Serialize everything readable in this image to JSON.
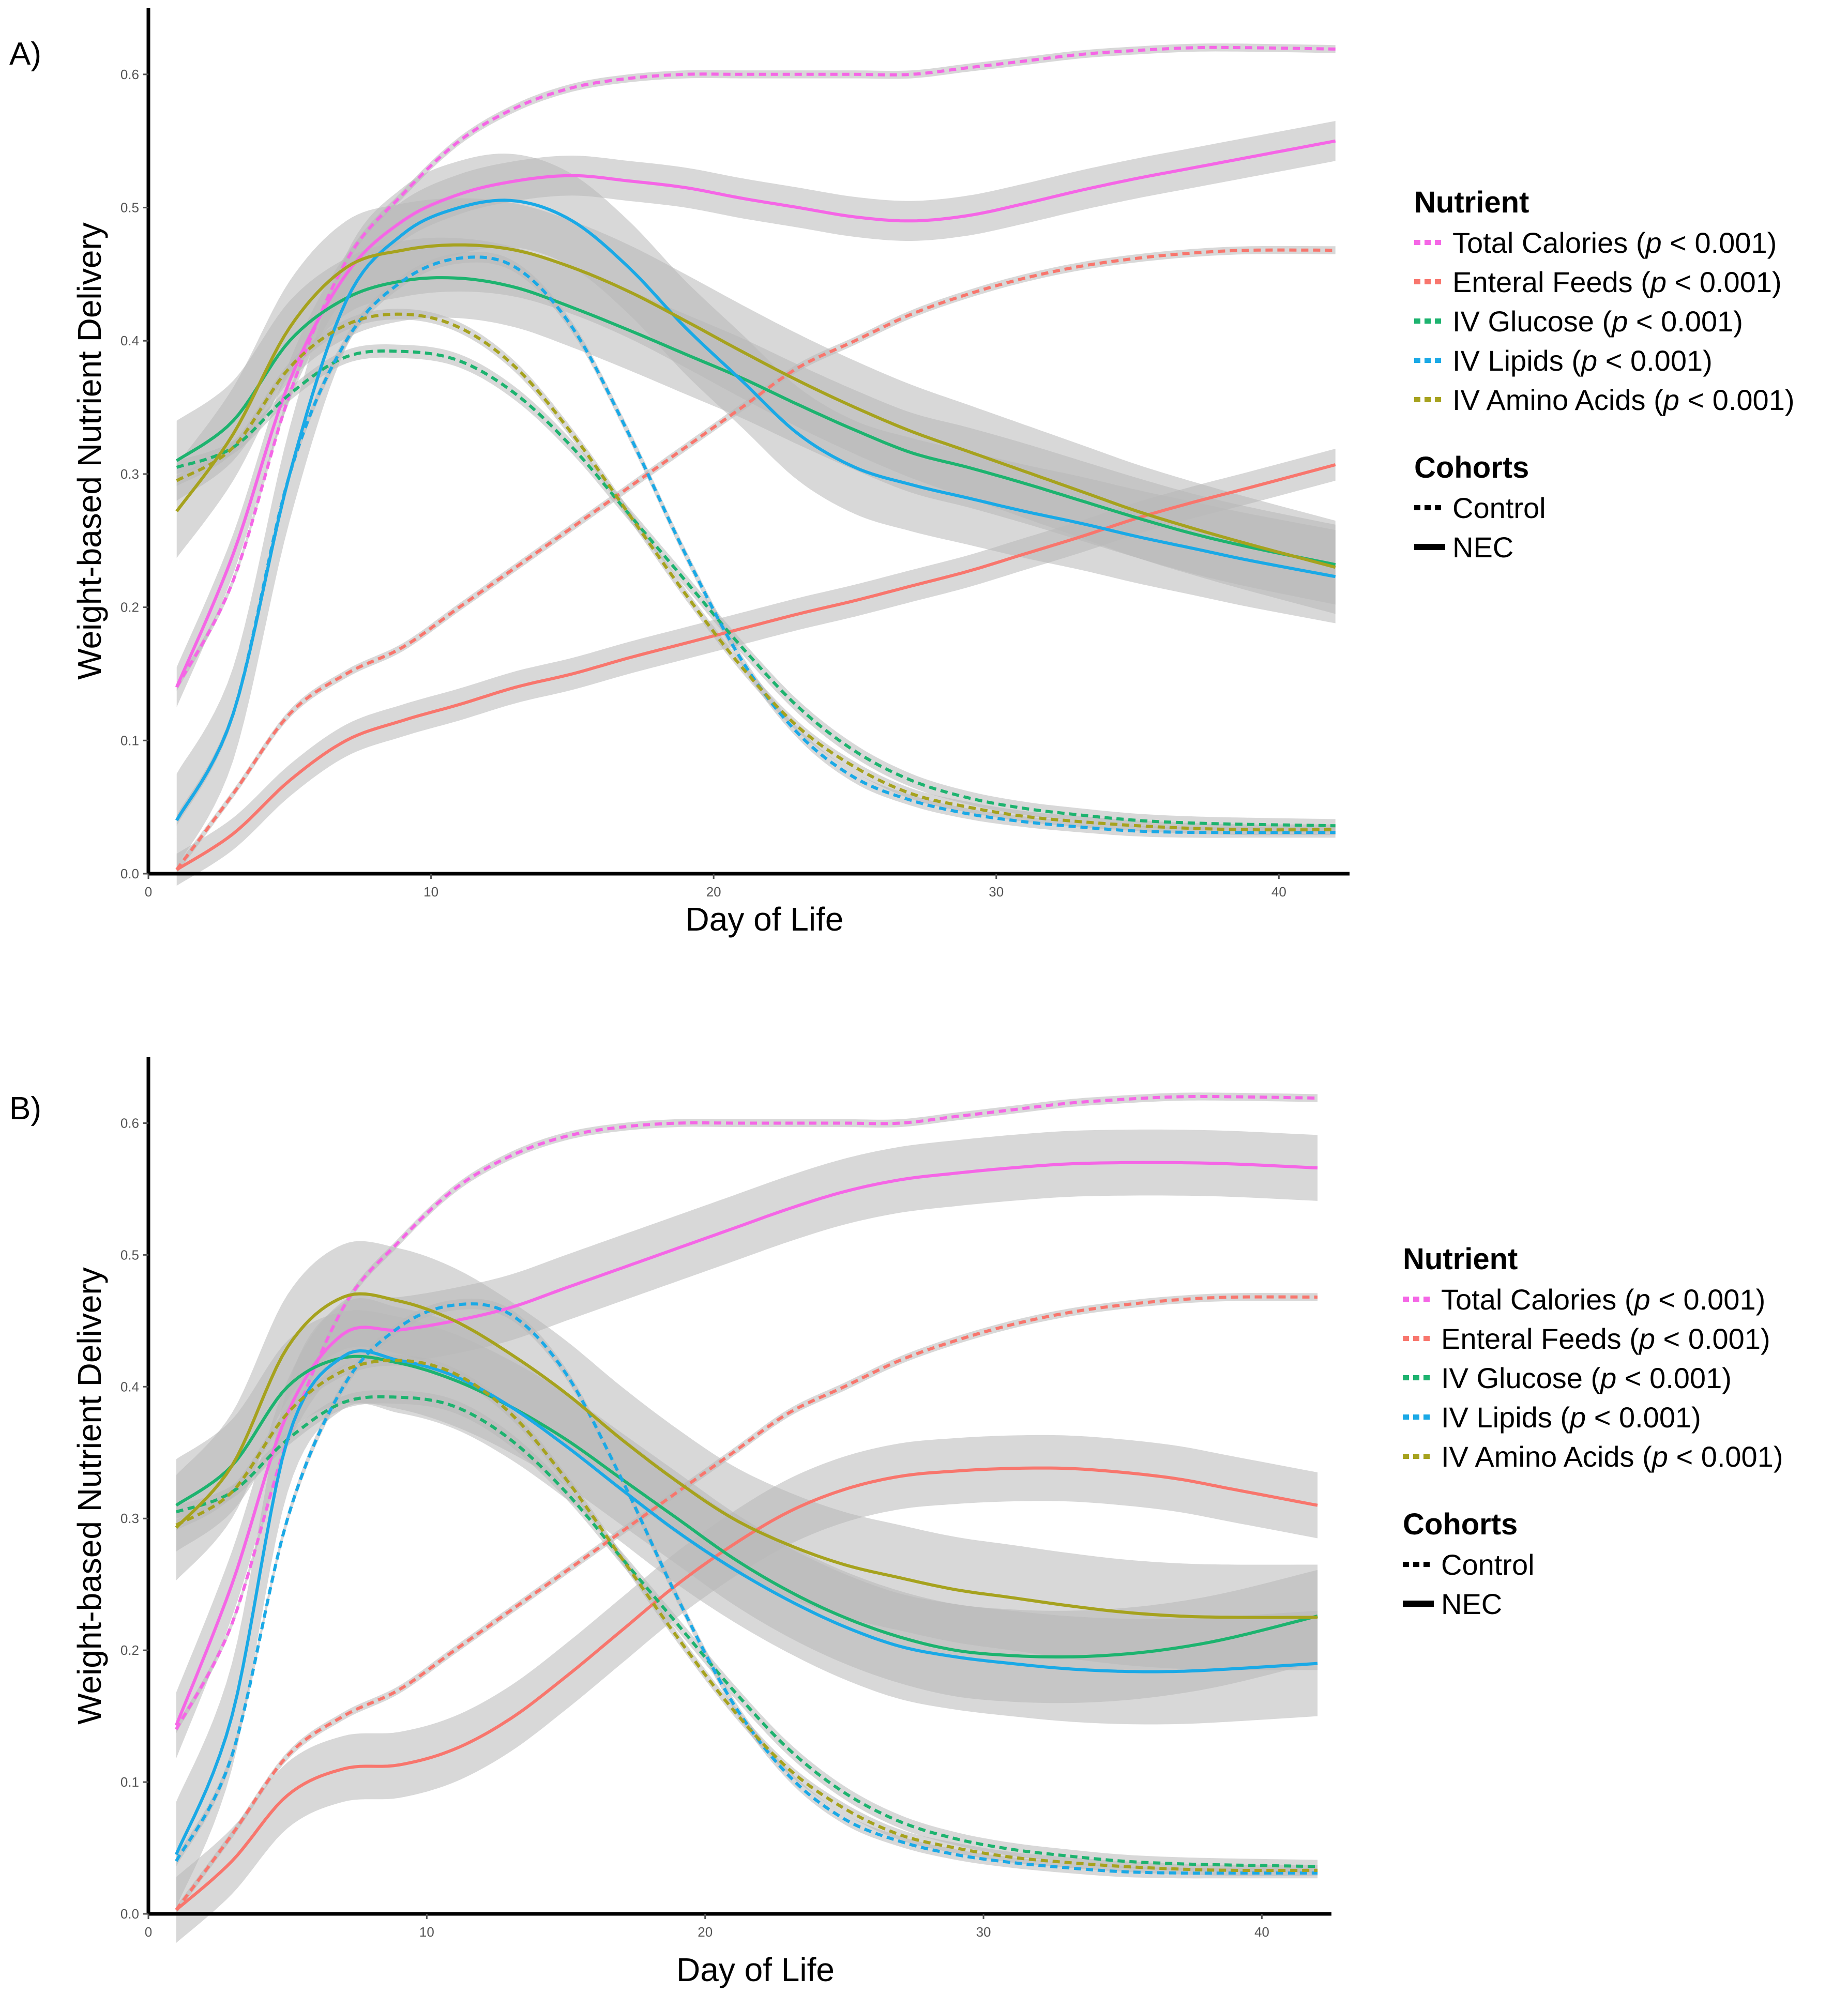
{
  "colors": {
    "total_calories": "#F566E6",
    "enteral_feeds": "#F8766D",
    "iv_glucose": "#1DB36F",
    "iv_lipids": "#1AA9E6",
    "iv_amino_acids": "#A6A21E",
    "band": "#B8B8B8",
    "axis": "#000000",
    "tick_label": "#555555"
  },
  "legend": {
    "nutrient_title": "Nutrient",
    "cohorts_title": "Cohorts",
    "entries": [
      {
        "key": "total_calories",
        "label": "Total Calories (",
        "p": "p",
        "suffix": " < 0.001)"
      },
      {
        "key": "enteral_feeds",
        "label": "Enteral Feeds (",
        "p": "p",
        "suffix": " < 0.001)"
      },
      {
        "key": "iv_glucose",
        "label": "IV Glucose (",
        "p": "p",
        "suffix": " < 0.001)"
      },
      {
        "key": "iv_lipids",
        "label": "IV Lipids (",
        "p": "p",
        "suffix": " < 0.001)"
      },
      {
        "key": "iv_amino_acids",
        "label": "IV Amino Acids (",
        "p": "p",
        "suffix": " < 0.001)"
      }
    ],
    "cohorts": [
      {
        "style": "dashed",
        "label": "Control"
      },
      {
        "style": "solid",
        "label": "NEC"
      }
    ]
  },
  "chart_data": [
    {
      "panel": "A)",
      "type": "line",
      "xlabel": "Day of Life",
      "ylabel": "Weight-based Nutrient Delivery",
      "xlim": [
        0,
        42.5
      ],
      "ylim": [
        0,
        0.65
      ],
      "xticks": [
        0,
        10,
        20,
        30,
        40
      ],
      "yticks": [
        0.0,
        0.1,
        0.2,
        0.3,
        0.4,
        0.5,
        0.6
      ],
      "series": [
        {
          "nutrient": "total_calories",
          "cohort": "Control",
          "band": 0.003,
          "x": [
            1,
            3,
            5,
            7,
            9,
            11,
            13,
            15,
            17,
            19,
            21,
            23,
            25,
            27,
            29,
            31,
            33,
            35,
            37,
            39,
            42
          ],
          "y": [
            0.14,
            0.22,
            0.36,
            0.46,
            0.51,
            0.55,
            0.575,
            0.59,
            0.597,
            0.6,
            0.6,
            0.6,
            0.6,
            0.6,
            0.605,
            0.61,
            0.615,
            0.618,
            0.62,
            0.62,
            0.619
          ]
        },
        {
          "nutrient": "total_calories",
          "cohort": "NEC",
          "band": 0.015,
          "x": [
            1,
            3,
            5,
            7,
            9,
            11,
            13,
            15,
            17,
            19,
            21,
            23,
            25,
            27,
            29,
            31,
            33,
            35,
            37,
            39,
            42
          ],
          "y": [
            0.14,
            0.24,
            0.37,
            0.45,
            0.49,
            0.51,
            0.52,
            0.524,
            0.52,
            0.515,
            0.507,
            0.5,
            0.493,
            0.49,
            0.494,
            0.503,
            0.513,
            0.522,
            0.53,
            0.538,
            0.55
          ]
        },
        {
          "nutrient": "enteral_feeds",
          "cohort": "Control",
          "band": 0.003,
          "x": [
            1,
            3,
            5,
            7,
            9,
            11,
            13,
            15,
            17,
            19,
            21,
            23,
            25,
            27,
            29,
            31,
            33,
            35,
            37,
            39,
            42
          ],
          "y": [
            0.003,
            0.06,
            0.12,
            0.15,
            0.17,
            0.2,
            0.23,
            0.26,
            0.29,
            0.32,
            0.35,
            0.38,
            0.4,
            0.42,
            0.435,
            0.447,
            0.456,
            0.462,
            0.466,
            0.468,
            0.468
          ]
        },
        {
          "nutrient": "enteral_feeds",
          "cohort": "NEC",
          "band": 0.012,
          "x": [
            1,
            3,
            5,
            7,
            9,
            11,
            13,
            15,
            17,
            19,
            21,
            23,
            25,
            27,
            29,
            31,
            33,
            35,
            37,
            39,
            42
          ],
          "y": [
            0.003,
            0.03,
            0.07,
            0.1,
            0.115,
            0.127,
            0.14,
            0.15,
            0.162,
            0.173,
            0.184,
            0.195,
            0.205,
            0.216,
            0.227,
            0.24,
            0.253,
            0.267,
            0.279,
            0.29,
            0.307
          ]
        },
        {
          "nutrient": "iv_glucose",
          "cohort": "Control",
          "band": 0.005,
          "x": [
            1,
            3,
            5,
            7,
            9,
            11,
            13,
            15,
            17,
            19,
            21,
            23,
            25,
            27,
            29,
            31,
            33,
            35,
            37,
            39,
            42
          ],
          "y": [
            0.305,
            0.32,
            0.36,
            0.388,
            0.392,
            0.385,
            0.36,
            0.32,
            0.27,
            0.22,
            0.17,
            0.125,
            0.092,
            0.07,
            0.057,
            0.049,
            0.044,
            0.04,
            0.038,
            0.037,
            0.036
          ]
        },
        {
          "nutrient": "iv_glucose",
          "cohort": "NEC",
          "band": 0.03,
          "x": [
            1,
            3,
            5,
            7,
            9,
            11,
            13,
            15,
            17,
            19,
            21,
            23,
            25,
            27,
            29,
            31,
            33,
            35,
            37,
            39,
            42
          ],
          "y": [
            0.31,
            0.34,
            0.4,
            0.432,
            0.445,
            0.447,
            0.44,
            0.425,
            0.408,
            0.39,
            0.372,
            0.352,
            0.333,
            0.316,
            0.305,
            0.293,
            0.28,
            0.267,
            0.255,
            0.245,
            0.232
          ]
        },
        {
          "nutrient": "iv_lipids",
          "cohort": "Control",
          "band": 0.004,
          "x": [
            1,
            3,
            5,
            7,
            9,
            11,
            13,
            15,
            17,
            19,
            21,
            23,
            25,
            27,
            29,
            31,
            33,
            35,
            37,
            39,
            42
          ],
          "y": [
            0.04,
            0.12,
            0.3,
            0.4,
            0.445,
            0.462,
            0.455,
            0.41,
            0.33,
            0.24,
            0.16,
            0.105,
            0.072,
            0.055,
            0.045,
            0.039,
            0.035,
            0.032,
            0.031,
            0.031,
            0.031
          ]
        },
        {
          "nutrient": "iv_lipids",
          "cohort": "NEC",
          "band": 0.035,
          "x": [
            1,
            3,
            5,
            7,
            9,
            11,
            13,
            15,
            17,
            19,
            21,
            23,
            25,
            27,
            29,
            31,
            33,
            35,
            37,
            39,
            42
          ],
          "y": [
            0.04,
            0.12,
            0.3,
            0.43,
            0.48,
            0.5,
            0.505,
            0.49,
            0.455,
            0.41,
            0.37,
            0.33,
            0.305,
            0.292,
            0.282,
            0.272,
            0.263,
            0.253,
            0.244,
            0.235,
            0.223
          ]
        },
        {
          "nutrient": "iv_amino_acids",
          "cohort": "Control",
          "band": 0.004,
          "x": [
            1,
            3,
            5,
            7,
            9,
            11,
            13,
            15,
            17,
            19,
            21,
            23,
            25,
            27,
            29,
            31,
            33,
            35,
            37,
            39,
            42
          ],
          "y": [
            0.295,
            0.32,
            0.38,
            0.412,
            0.42,
            0.41,
            0.38,
            0.33,
            0.27,
            0.21,
            0.155,
            0.11,
            0.08,
            0.06,
            0.05,
            0.043,
            0.039,
            0.036,
            0.034,
            0.033,
            0.033
          ]
        },
        {
          "nutrient": "iv_amino_acids",
          "cohort": "NEC",
          "band": 0.035,
          "x": [
            1,
            3,
            5,
            7,
            9,
            11,
            13,
            15,
            17,
            19,
            21,
            23,
            25,
            27,
            29,
            31,
            33,
            35,
            37,
            39,
            42
          ],
          "y": [
            0.272,
            0.33,
            0.41,
            0.455,
            0.468,
            0.472,
            0.468,
            0.455,
            0.437,
            0.415,
            0.392,
            0.37,
            0.35,
            0.332,
            0.317,
            0.302,
            0.287,
            0.272,
            0.259,
            0.247,
            0.23
          ]
        }
      ]
    },
    {
      "panel": "B)",
      "type": "line",
      "xlabel": "Day of Life",
      "ylabel": "Weight-based Nutrient Delivery",
      "xlim": [
        0,
        42.5
      ],
      "ylim": [
        0,
        0.65
      ],
      "xticks": [
        0,
        10,
        20,
        30,
        40
      ],
      "yticks": [
        0.0,
        0.1,
        0.2,
        0.3,
        0.4,
        0.5,
        0.6
      ],
      "series": [
        {
          "nutrient": "total_calories",
          "cohort": "Control",
          "band": 0.003,
          "x": [
            1,
            3,
            5,
            7,
            9,
            11,
            13,
            15,
            17,
            19,
            21,
            23,
            25,
            27,
            29,
            31,
            33,
            35,
            37,
            39,
            42
          ],
          "y": [
            0.14,
            0.22,
            0.36,
            0.46,
            0.51,
            0.55,
            0.575,
            0.59,
            0.597,
            0.6,
            0.6,
            0.6,
            0.6,
            0.6,
            0.605,
            0.61,
            0.615,
            0.618,
            0.62,
            0.62,
            0.619
          ]
        },
        {
          "nutrient": "total_calories",
          "cohort": "NEC",
          "band": 0.025,
          "x": [
            1,
            3,
            5,
            7,
            9,
            11,
            13,
            15,
            17,
            19,
            21,
            23,
            25,
            27,
            29,
            31,
            33,
            35,
            37,
            39,
            42
          ],
          "y": [
            0.143,
            0.25,
            0.38,
            0.44,
            0.443,
            0.45,
            0.46,
            0.475,
            0.49,
            0.505,
            0.52,
            0.535,
            0.548,
            0.557,
            0.562,
            0.566,
            0.569,
            0.57,
            0.57,
            0.569,
            0.566
          ]
        },
        {
          "nutrient": "enteral_feeds",
          "cohort": "Control",
          "band": 0.003,
          "x": [
            1,
            3,
            5,
            7,
            9,
            11,
            13,
            15,
            17,
            19,
            21,
            23,
            25,
            27,
            29,
            31,
            33,
            35,
            37,
            39,
            42
          ],
          "y": [
            0.003,
            0.06,
            0.12,
            0.15,
            0.17,
            0.2,
            0.23,
            0.26,
            0.29,
            0.32,
            0.35,
            0.38,
            0.4,
            0.42,
            0.435,
            0.447,
            0.456,
            0.462,
            0.466,
            0.468,
            0.468
          ]
        },
        {
          "nutrient": "enteral_feeds",
          "cohort": "NEC",
          "band": 0.025,
          "x": [
            1,
            3,
            5,
            7,
            9,
            11,
            13,
            15,
            17,
            19,
            21,
            23,
            25,
            27,
            29,
            31,
            33,
            35,
            37,
            39,
            42
          ],
          "y": [
            0.003,
            0.04,
            0.09,
            0.11,
            0.113,
            0.125,
            0.148,
            0.18,
            0.215,
            0.25,
            0.28,
            0.305,
            0.322,
            0.332,
            0.336,
            0.338,
            0.338,
            0.335,
            0.33,
            0.322,
            0.31
          ]
        },
        {
          "nutrient": "iv_glucose",
          "cohort": "Control",
          "band": 0.005,
          "x": [
            1,
            3,
            5,
            7,
            9,
            11,
            13,
            15,
            17,
            19,
            21,
            23,
            25,
            27,
            29,
            31,
            33,
            35,
            37,
            39,
            42
          ],
          "y": [
            0.305,
            0.32,
            0.36,
            0.388,
            0.392,
            0.385,
            0.36,
            0.32,
            0.27,
            0.22,
            0.17,
            0.125,
            0.092,
            0.07,
            0.057,
            0.049,
            0.044,
            0.04,
            0.038,
            0.037,
            0.036
          ]
        },
        {
          "nutrient": "iv_glucose",
          "cohort": "NEC",
          "band": 0.035,
          "x": [
            1,
            3,
            5,
            7,
            9,
            11,
            13,
            15,
            17,
            19,
            21,
            23,
            25,
            27,
            29,
            31,
            33,
            35,
            37,
            39,
            42
          ],
          "y": [
            0.31,
            0.34,
            0.4,
            0.422,
            0.418,
            0.405,
            0.385,
            0.36,
            0.33,
            0.3,
            0.27,
            0.245,
            0.225,
            0.21,
            0.2,
            0.196,
            0.195,
            0.197,
            0.202,
            0.21,
            0.226
          ]
        },
        {
          "nutrient": "iv_lipids",
          "cohort": "Control",
          "band": 0.004,
          "x": [
            1,
            3,
            5,
            7,
            9,
            11,
            13,
            15,
            17,
            19,
            21,
            23,
            25,
            27,
            29,
            31,
            33,
            35,
            37,
            39,
            42
          ],
          "y": [
            0.04,
            0.12,
            0.3,
            0.4,
            0.445,
            0.462,
            0.455,
            0.41,
            0.33,
            0.24,
            0.16,
            0.105,
            0.072,
            0.055,
            0.045,
            0.039,
            0.035,
            0.032,
            0.031,
            0.031,
            0.031
          ]
        },
        {
          "nutrient": "iv_lipids",
          "cohort": "NEC",
          "band": 0.04,
          "x": [
            1,
            3,
            5,
            7,
            9,
            11,
            13,
            15,
            17,
            19,
            21,
            23,
            25,
            27,
            29,
            31,
            33,
            35,
            37,
            39,
            42
          ],
          "y": [
            0.045,
            0.15,
            0.36,
            0.423,
            0.42,
            0.408,
            0.385,
            0.355,
            0.322,
            0.29,
            0.262,
            0.238,
            0.218,
            0.203,
            0.195,
            0.19,
            0.186,
            0.184,
            0.184,
            0.186,
            0.19
          ]
        },
        {
          "nutrient": "iv_amino_acids",
          "cohort": "Control",
          "band": 0.004,
          "x": [
            1,
            3,
            5,
            7,
            9,
            11,
            13,
            15,
            17,
            19,
            21,
            23,
            25,
            27,
            29,
            31,
            33,
            35,
            37,
            39,
            42
          ],
          "y": [
            0.295,
            0.32,
            0.38,
            0.412,
            0.42,
            0.41,
            0.38,
            0.33,
            0.27,
            0.21,
            0.155,
            0.11,
            0.08,
            0.06,
            0.05,
            0.043,
            0.039,
            0.036,
            0.034,
            0.033,
            0.033
          ]
        },
        {
          "nutrient": "iv_amino_acids",
          "cohort": "NEC",
          "band": 0.04,
          "x": [
            1,
            3,
            5,
            7,
            9,
            11,
            13,
            15,
            17,
            19,
            21,
            23,
            25,
            27,
            29,
            31,
            33,
            35,
            37,
            39,
            42
          ],
          "y": [
            0.293,
            0.34,
            0.43,
            0.468,
            0.465,
            0.45,
            0.425,
            0.395,
            0.36,
            0.328,
            0.3,
            0.28,
            0.265,
            0.255,
            0.246,
            0.24,
            0.234,
            0.229,
            0.226,
            0.225,
            0.225
          ]
        }
      ]
    }
  ]
}
